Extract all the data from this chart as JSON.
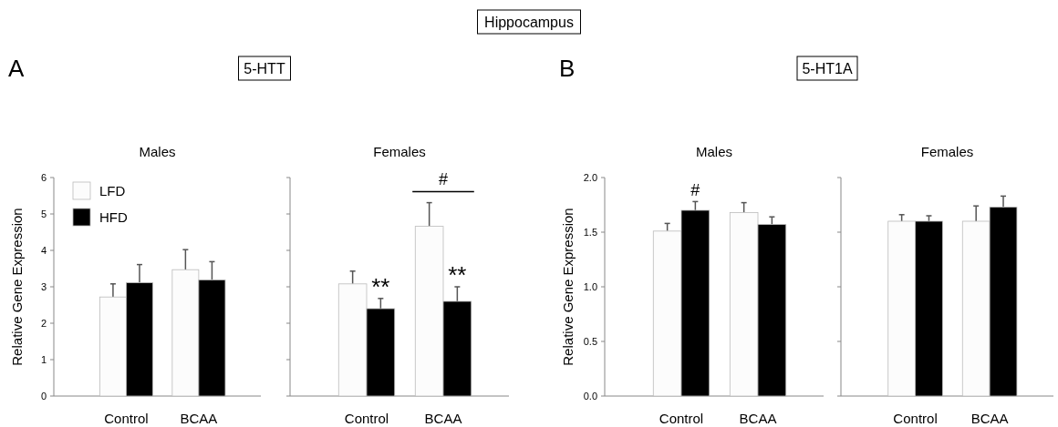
{
  "chart_data": [
    {
      "type": "bar",
      "title": "Males",
      "ylabel": "Relative Gene Expression",
      "categories": [
        "Control",
        "BCAA"
      ],
      "series": [
        {
          "name": "LFD",
          "color": "#fcfcfc",
          "values": [
            2.72,
            3.47
          ],
          "errors": [
            [
              2.72,
              3.08
            ],
            [
              3.47,
              4.02
            ]
          ]
        },
        {
          "name": "HFD",
          "color": "#000000",
          "values": [
            3.11,
            3.19
          ],
          "errors": [
            [
              3.11,
              3.61
            ],
            [
              3.19,
              3.69
            ]
          ]
        }
      ],
      "ylim": [
        0,
        6
      ],
      "yticks": [
        0,
        1,
        2,
        3,
        4,
        5,
        6
      ],
      "legend": "top left",
      "annotations": [
        "Hippocampus",
        "A",
        "5-HTT"
      ]
    },
    {
      "type": "bar",
      "title": "Females",
      "categories": [
        "Control",
        "BCAA"
      ],
      "series": [
        {
          "color": "#fcfcfc",
          "values": [
            3.08,
            4.66
          ],
          "errors": [
            [
              3.08,
              3.43
            ],
            [
              4.66,
              5.31
            ]
          ]
        },
        {
          "color": "#000000",
          "values": [
            2.4,
            2.6
          ],
          "errors": [
            [
              2.4,
              2.68
            ],
            [
              2.6,
              3.0
            ]
          ]
        }
      ],
      "ylim": [
        0,
        6
      ],
      "yticks": [
        0,
        1,
        2,
        3,
        4,
        5,
        6
      ],
      "tick_labels": "x",
      "annotations": [
        {
          "text": "**",
          "x": "Control",
          "y": 2.68
        },
        {
          "text": "**",
          "x": "BCAA",
          "y": 3.0
        },
        "#"
      ]
    },
    {
      "type": "bar",
      "title": "Males",
      "ylabel": "Relative Gene Expression",
      "categories": [
        "Control",
        "BCAA"
      ],
      "series": [
        {
          "color": "#fcfcfc",
          "values": [
            1.51,
            1.68
          ],
          "errors": [
            [
              1.51,
              1.58
            ],
            [
              1.68,
              1.77
            ]
          ]
        },
        {
          "color": "#000000",
          "values": [
            1.7,
            1.57
          ],
          "errors": [
            [
              1.7,
              1.78
            ],
            [
              1.57,
              1.64
            ]
          ]
        }
      ],
      "ylim": [
        0,
        2
      ],
      "yticks": [
        {
          "value": 0,
          "label": "0.0"
        },
        {
          "value": 0.5,
          "label": "0.5"
        },
        {
          "value": 1,
          "label": "1.0"
        },
        {
          "value": 1.5,
          "label": "1.5"
        },
        {
          "value": 2,
          "label": "2.0"
        }
      ],
      "annotations": [
        "#",
        "B",
        "5-HT1A"
      ]
    },
    {
      "type": "bar",
      "title": "Females",
      "categories": [
        "Control",
        "BCAA"
      ],
      "series": [
        {
          "color": "#fcfcfc",
          "values": [
            1.6,
            1.6
          ],
          "errors": [
            [
              1.6,
              1.66
            ],
            [
              1.6,
              1.74
            ]
          ]
        },
        {
          "color": "#000000",
          "values": [
            1.6,
            1.73
          ],
          "errors": [
            [
              1.6,
              1.65
            ],
            [
              1.73,
              1.83
            ]
          ]
        }
      ],
      "ylim": [
        0,
        2
      ],
      "yticks": [
        0,
        0.5,
        1,
        1.5,
        2
      ],
      "tick_labels": "x"
    }
  ]
}
